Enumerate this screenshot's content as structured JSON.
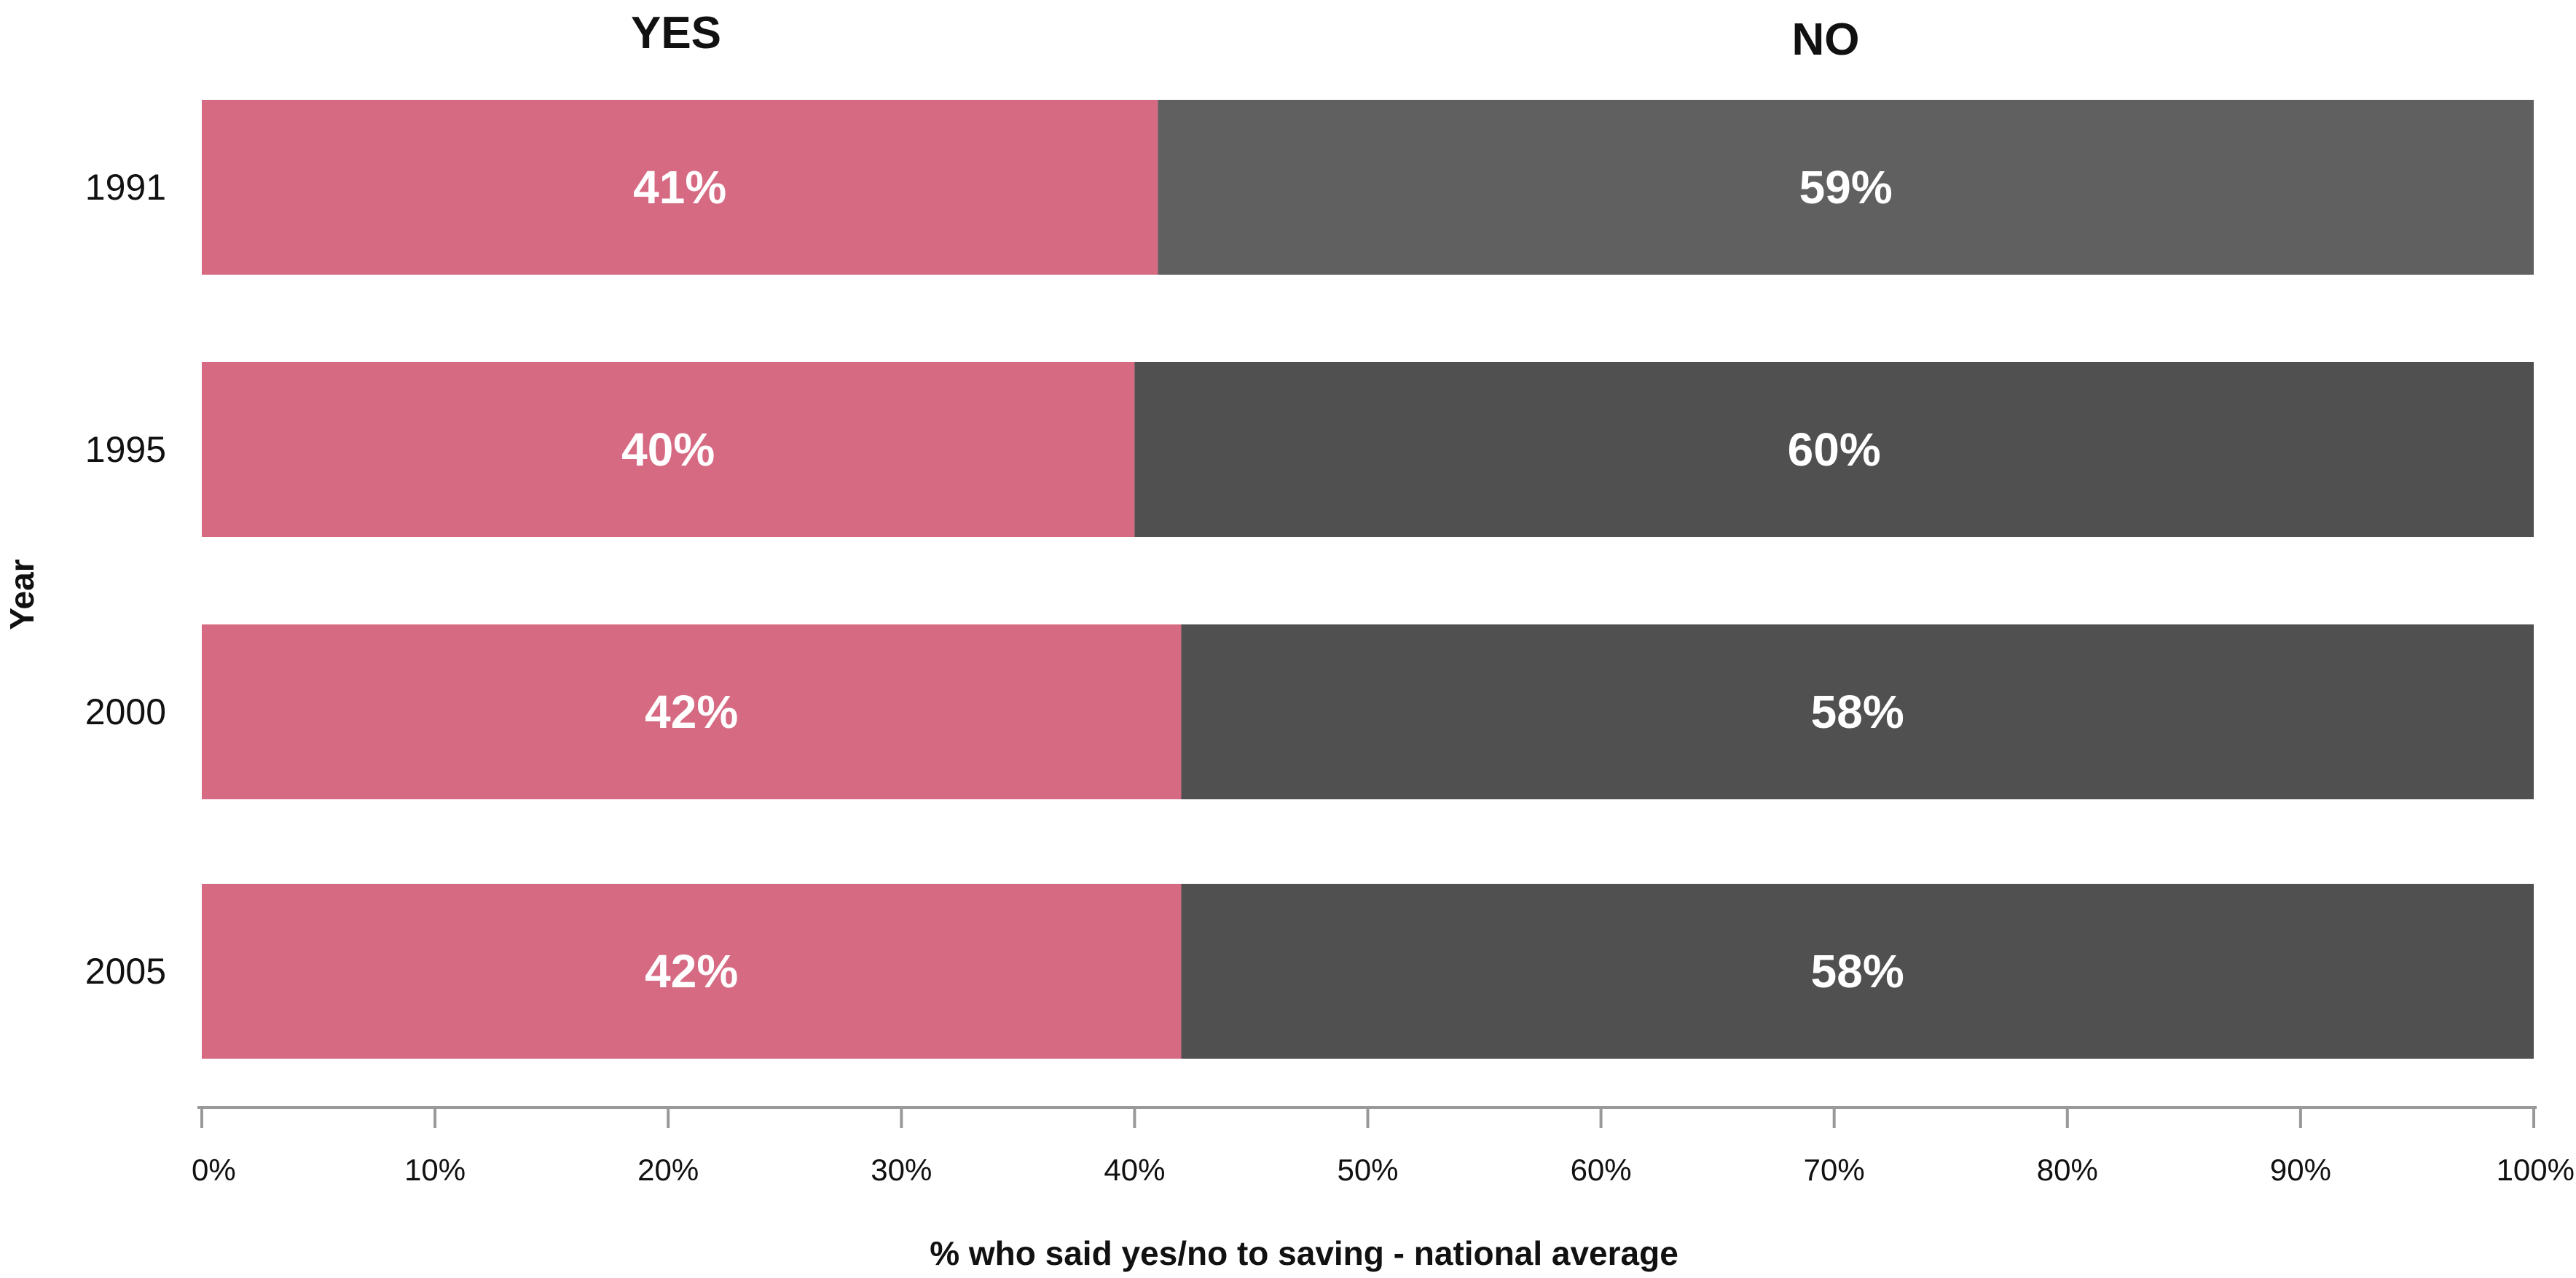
{
  "chart_data": {
    "type": "bar",
    "orientation": "horizontal",
    "stacked": true,
    "column_headers": [
      "YES",
      "NO"
    ],
    "categories": [
      "1991",
      "1995",
      "2000",
      "2005"
    ],
    "series": [
      {
        "name": "YES",
        "values": [
          41,
          40,
          42,
          42
        ],
        "labels": [
          "41%",
          "40%",
          "42%",
          "42%"
        ],
        "color": "#d66a83"
      },
      {
        "name": "NO",
        "values": [
          59,
          60,
          58,
          58
        ],
        "labels": [
          "59%",
          "60%",
          "58%",
          "58%"
        ],
        "color": "#505050"
      }
    ],
    "xlabel": "% who said yes/no to saving - national average",
    "ylabel": "Year",
    "xlim": [
      0,
      100
    ],
    "x_ticks": [
      "0%",
      "10%",
      "20%",
      "30%",
      "40%",
      "50%",
      "60%",
      "70%",
      "80%",
      "90%",
      "100%"
    ],
    "grid": false,
    "legend": "none"
  },
  "colors": {
    "yes": "#d66a83",
    "no": "#505050",
    "no_1991": "#606060",
    "axis": "#999999"
  }
}
